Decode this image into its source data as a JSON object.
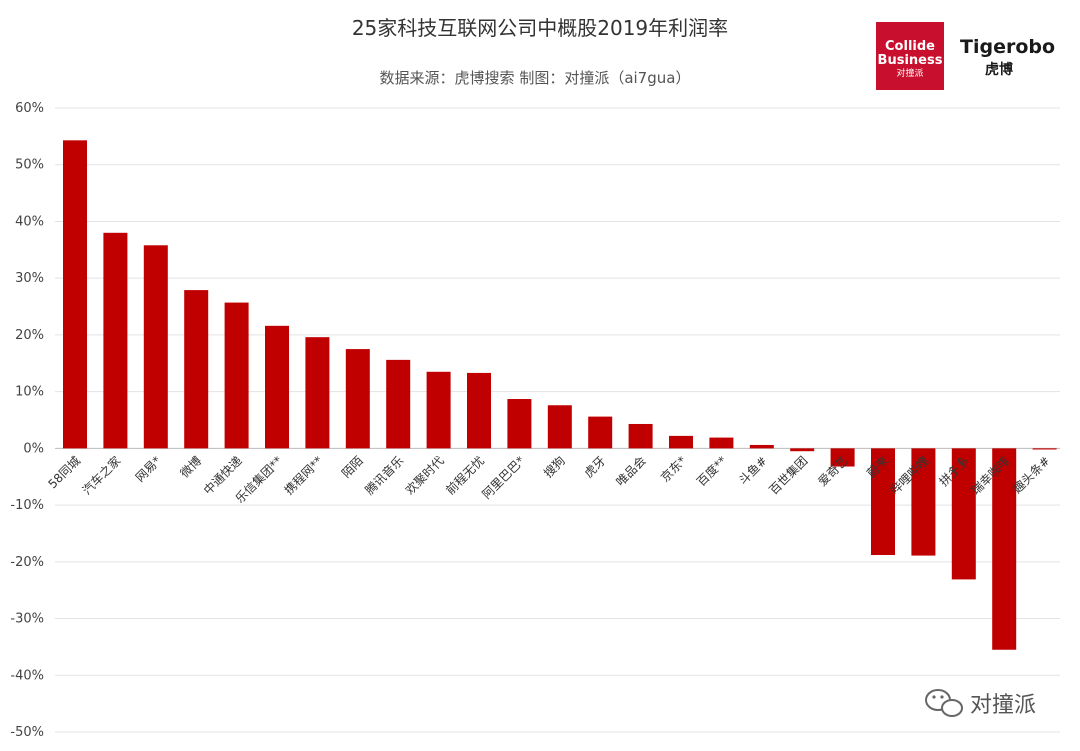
{
  "chart_data": {
    "type": "bar",
    "title": "25家科技互联网公司中概股2019年利润率",
    "subtitle": "数据来源：虎博搜索  制图：对撞派（ai7gua）",
    "categories": [
      "58同城",
      "汽车之家",
      "网易*",
      "微博",
      "中通快递",
      "乐信集团**",
      "携程网**",
      "陌陌",
      "腾讯音乐",
      "欢聚时代",
      "前程无忧",
      "阿里巴巴*",
      "搜狗",
      "虎牙",
      "唯品会",
      "京东*",
      "百度**",
      "斗鱼#",
      "百世集团",
      "爱奇艺",
      "蔚来",
      "哔哩哔哩",
      "拼多多",
      "瑞幸咖啡",
      "趣头条#"
    ],
    "values": [
      54.3,
      38.0,
      35.8,
      27.9,
      25.7,
      21.6,
      19.6,
      17.5,
      15.6,
      13.5,
      13.3,
      8.7,
      7.6,
      5.6,
      4.3,
      2.2,
      1.9,
      0.6,
      -0.5,
      -3.2,
      -18.8,
      -18.9,
      -23.1,
      -35.5,
      -0.2
    ],
    "yticks": [
      "60%",
      "50%",
      "40%",
      "30%",
      "20%",
      "10%",
      "0%",
      "-10%",
      "-20%",
      "-30%",
      "-40%",
      "-50%"
    ],
    "ylim": [
      -50,
      60
    ],
    "bar_color": "#c00000",
    "grid": true,
    "legend": "none"
  },
  "branding": {
    "logo1_line1": "Collide",
    "logo1_line2": "Business",
    "logo1_line3": "对撞派",
    "logo1_color": "#c8102e",
    "logo2_line1": "Tigerobo",
    "logo2_line2": "虎博"
  },
  "watermark": {
    "text": "对撞派"
  }
}
